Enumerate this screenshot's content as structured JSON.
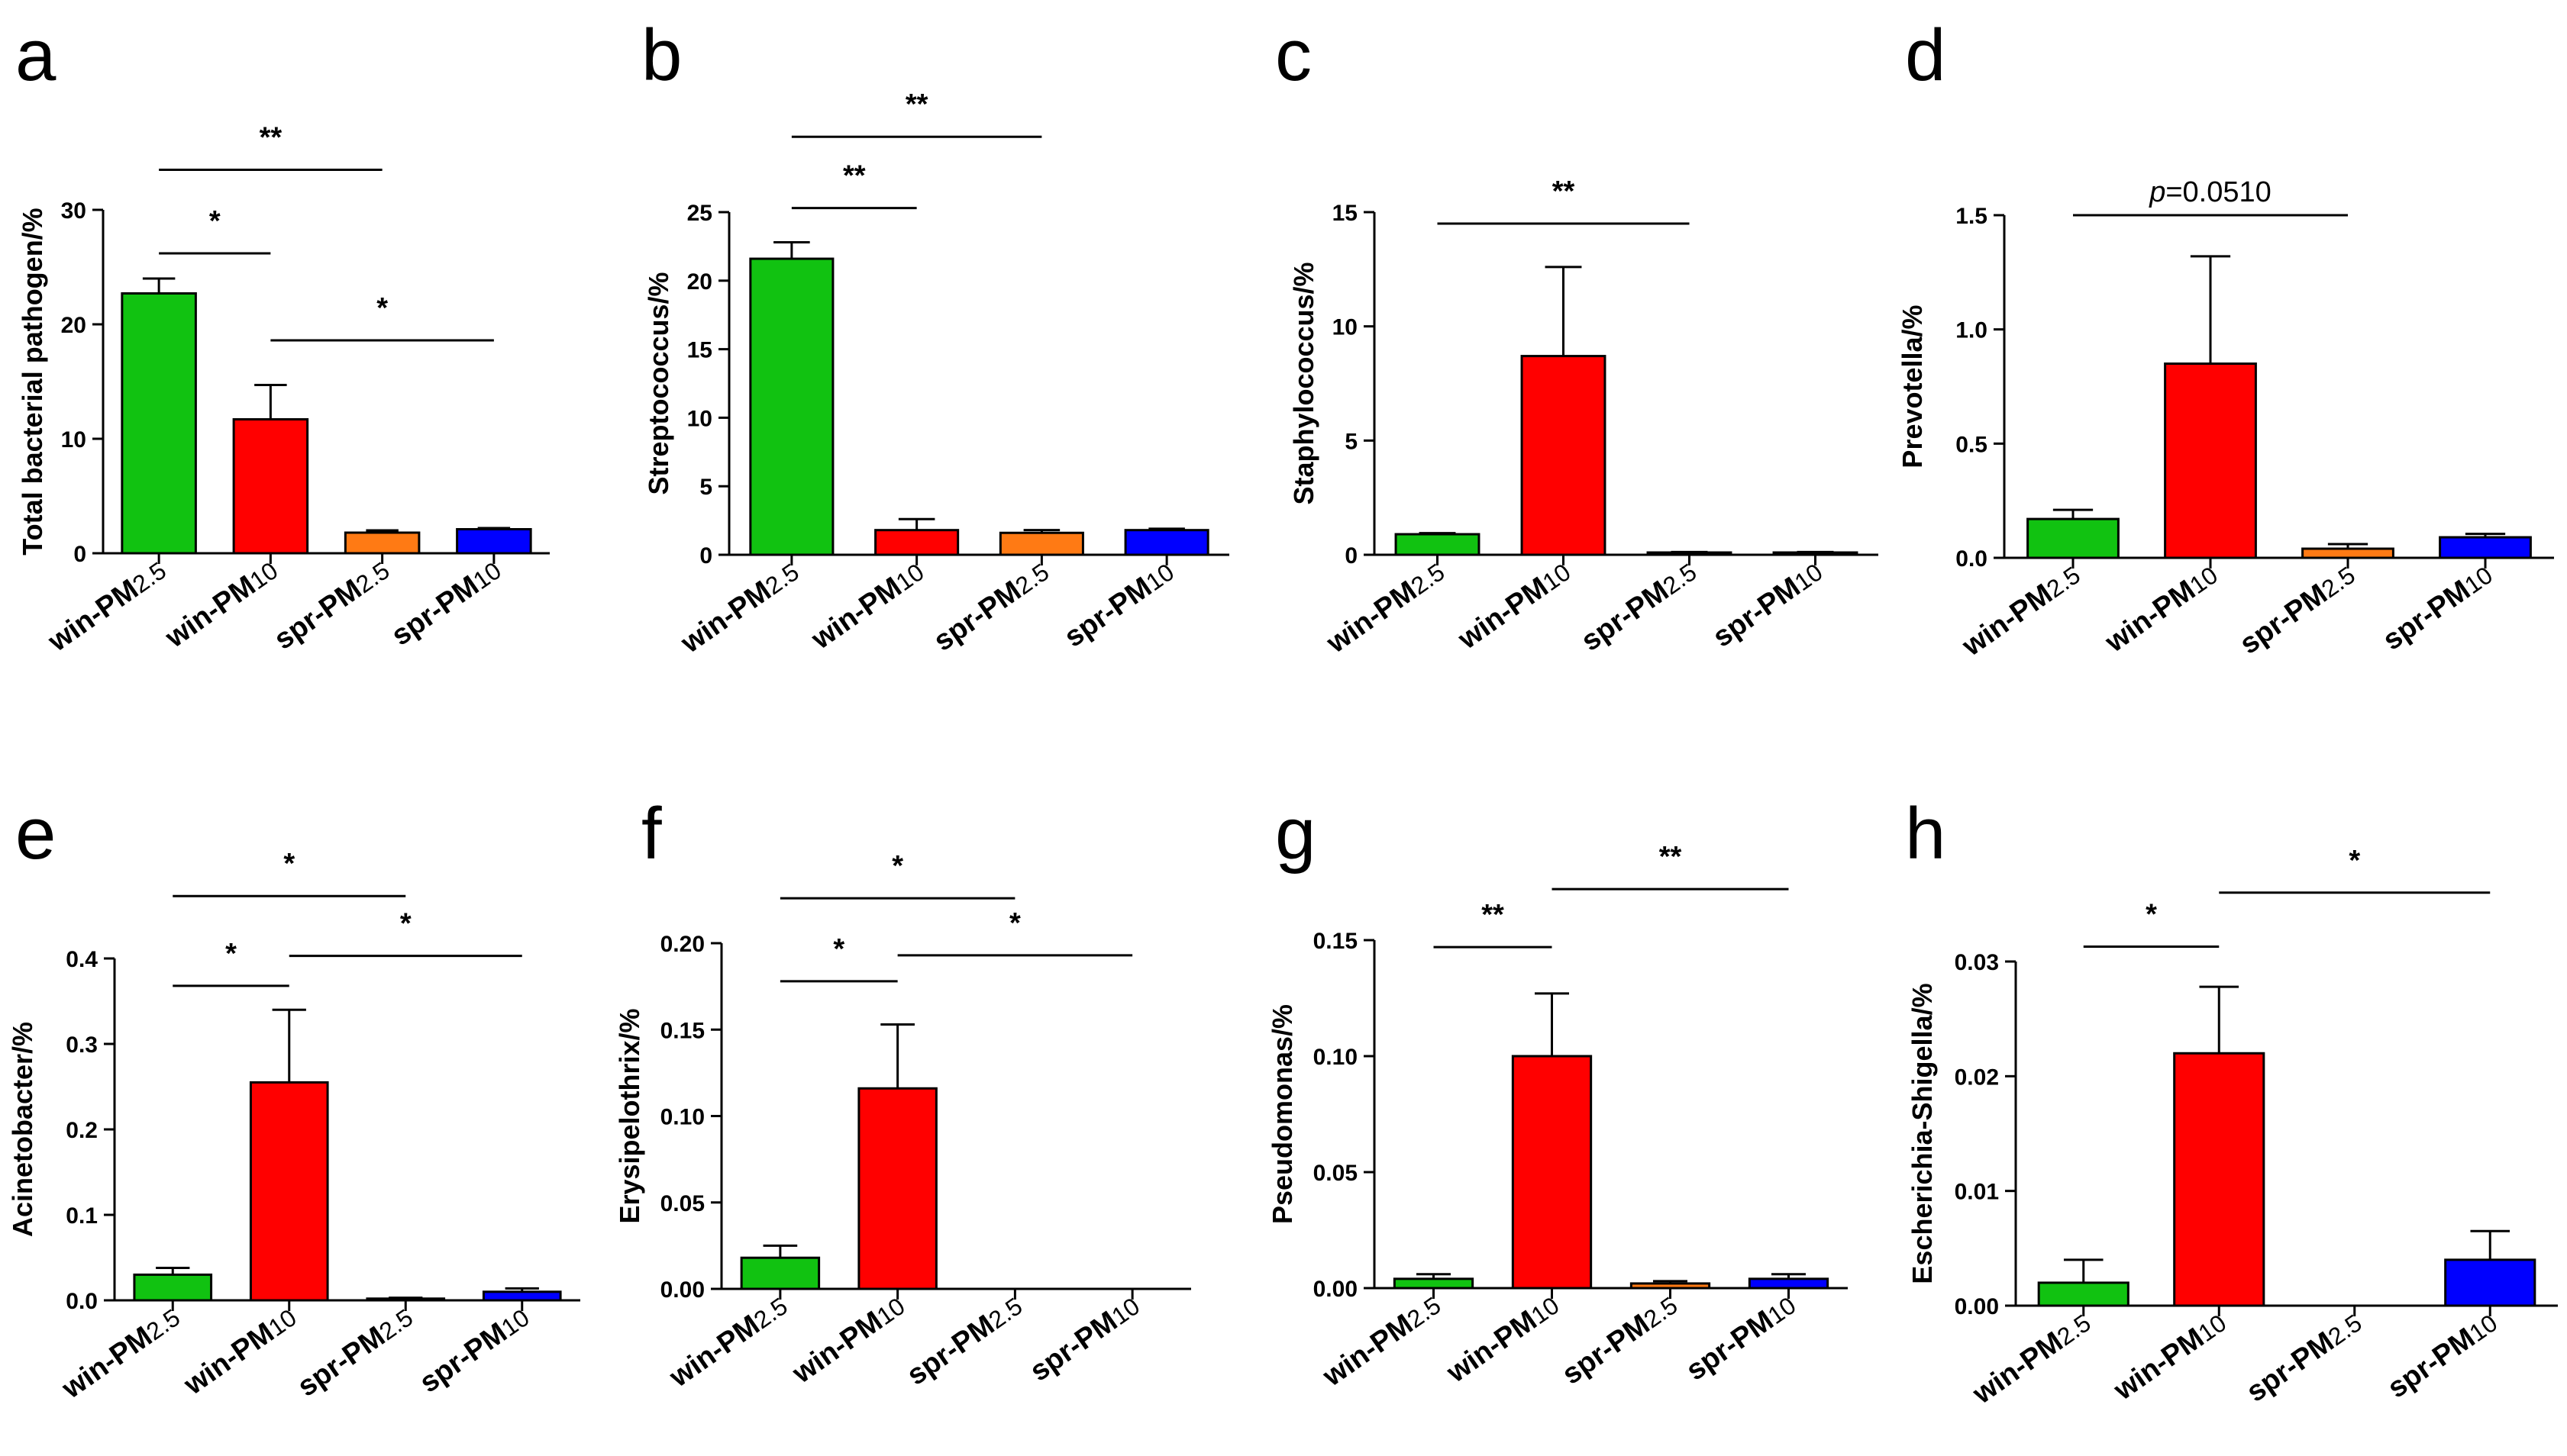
{
  "colors": [
    "#11c211",
    "#ff0000",
    "#ff7a14",
    "#0000ff"
  ],
  "chart_data": [
    {
      "panel": "a",
      "type": "bar",
      "ylabel": "Total bacterial pathogen/%",
      "ylim": [
        0,
        30
      ],
      "ticks": [
        0,
        10,
        20,
        30
      ],
      "tick_labels": [
        "0",
        "10",
        "20",
        "30"
      ],
      "categories": [
        {
          "prefix": "win-PM",
          "sub": "2.5"
        },
        {
          "prefix": "win-PM",
          "sub": "10"
        },
        {
          "prefix": "spr-PM",
          "sub": "2.5"
        },
        {
          "prefix": "spr-PM",
          "sub": "10"
        }
      ],
      "values": [
        22.7,
        11.7,
        1.8,
        2.1
      ],
      "errors": [
        1.3,
        3.0,
        0.2,
        0.1
      ],
      "significance": [
        {
          "from": 0,
          "to": 2,
          "label": "**",
          "y": 33.5
        },
        {
          "from": 0,
          "to": 1,
          "label": "*",
          "y": 26.2
        },
        {
          "from": 1,
          "to": 3,
          "label": "*",
          "y": 18.6
        }
      ]
    },
    {
      "panel": "b",
      "type": "bar",
      "ylabel": "Streptococcus/%",
      "ylim": [
        0,
        25
      ],
      "ticks": [
        0,
        5,
        10,
        15,
        20,
        25
      ],
      "tick_labels": [
        "0",
        "5",
        "10",
        "15",
        "20",
        "25"
      ],
      "categories": [
        {
          "prefix": "win-PM",
          "sub": "2.5"
        },
        {
          "prefix": "win-PM",
          "sub": "10"
        },
        {
          "prefix": "spr-PM",
          "sub": "2.5"
        },
        {
          "prefix": "spr-PM",
          "sub": "10"
        }
      ],
      "values": [
        21.6,
        1.8,
        1.6,
        1.8
      ],
      "errors": [
        1.2,
        0.8,
        0.2,
        0.1
      ],
      "significance": [
        {
          "from": 0,
          "to": 2,
          "label": "**",
          "y": 30.5
        },
        {
          "from": 0,
          "to": 1,
          "label": "**",
          "y": 25.3
        }
      ]
    },
    {
      "panel": "c",
      "type": "bar",
      "ylabel": "Staphylococcus/%",
      "ylim": [
        0,
        15
      ],
      "ticks": [
        0,
        5,
        10,
        15
      ],
      "tick_labels": [
        "0",
        "5",
        "10",
        "15"
      ],
      "categories": [
        {
          "prefix": "win-PM",
          "sub": "2.5"
        },
        {
          "prefix": "win-PM",
          "sub": "10"
        },
        {
          "prefix": "spr-PM",
          "sub": "2.5"
        },
        {
          "prefix": "spr-PM",
          "sub": "10"
        }
      ],
      "values": [
        0.9,
        8.7,
        0.1,
        0.1
      ],
      "errors": [
        0.05,
        3.9,
        0.02,
        0.02
      ],
      "significance": [
        {
          "from": 0,
          "to": 2,
          "label": "**",
          "y": 14.5
        }
      ]
    },
    {
      "panel": "d",
      "type": "bar",
      "ylabel": "Prevotella/%",
      "ylim": [
        0,
        1.5
      ],
      "ticks": [
        0,
        0.5,
        1.0,
        1.5
      ],
      "tick_labels": [
        "0.0",
        "0.5",
        "1.0",
        "1.5"
      ],
      "categories": [
        {
          "prefix": "win-PM",
          "sub": "2.5"
        },
        {
          "prefix": "win-PM",
          "sub": "10"
        },
        {
          "prefix": "spr-PM",
          "sub": "2.5"
        },
        {
          "prefix": "spr-PM",
          "sub": "10"
        }
      ],
      "values": [
        0.17,
        0.85,
        0.04,
        0.09
      ],
      "errors": [
        0.04,
        0.47,
        0.02,
        0.015
      ],
      "significance": [
        {
          "from": 0,
          "to": 2,
          "label": "p=0.0510",
          "y": 1.5
        }
      ]
    },
    {
      "panel": "e",
      "type": "bar",
      "ylabel": "Acinetobacter/%",
      "ylim": [
        0,
        0.4
      ],
      "ticks": [
        0,
        0.1,
        0.2,
        0.3,
        0.4
      ],
      "tick_labels": [
        "0.0",
        "0.1",
        "0.2",
        "0.3",
        "0.4"
      ],
      "categories": [
        {
          "prefix": "win-PM",
          "sub": "2.5"
        },
        {
          "prefix": "win-PM",
          "sub": "10"
        },
        {
          "prefix": "spr-PM",
          "sub": "2.5"
        },
        {
          "prefix": "spr-PM",
          "sub": "10"
        }
      ],
      "values": [
        0.03,
        0.255,
        0.002,
        0.01
      ],
      "errors": [
        0.008,
        0.085,
        0.001,
        0.004
      ],
      "significance": [
        {
          "from": 0,
          "to": 2,
          "label": "*",
          "y": 0.473
        },
        {
          "from": 0,
          "to": 1,
          "label": "*",
          "y": 0.368
        },
        {
          "from": 1,
          "to": 3,
          "label": "*",
          "y": 0.403
        }
      ]
    },
    {
      "panel": "f",
      "type": "bar",
      "ylabel": "Erysipelothrix/%",
      "ylim": [
        0,
        0.2
      ],
      "ticks": [
        0,
        0.05,
        0.1,
        0.15,
        0.2
      ],
      "tick_labels": [
        "0.00",
        "0.05",
        "0.10",
        "0.15",
        "0.20"
      ],
      "categories": [
        {
          "prefix": "win-PM",
          "sub": "2.5"
        },
        {
          "prefix": "win-PM",
          "sub": "10"
        },
        {
          "prefix": "spr-PM",
          "sub": "2.5"
        },
        {
          "prefix": "spr-PM",
          "sub": "10"
        }
      ],
      "values": [
        0.018,
        0.116,
        0,
        0
      ],
      "errors": [
        0.007,
        0.037,
        0,
        0
      ],
      "significance": [
        {
          "from": 0,
          "to": 2,
          "label": "*",
          "y": 0.226
        },
        {
          "from": 0,
          "to": 1,
          "label": "*",
          "y": 0.178
        },
        {
          "from": 1,
          "to": 3,
          "label": "*",
          "y": 0.193
        }
      ]
    },
    {
      "panel": "g",
      "type": "bar",
      "ylabel": "Pseudomonas/%",
      "ylim": [
        0,
        0.15
      ],
      "ticks": [
        0,
        0.05,
        0.1,
        0.15
      ],
      "tick_labels": [
        "0.00",
        "0.05",
        "0.10",
        "0.15"
      ],
      "categories": [
        {
          "prefix": "win-PM",
          "sub": "2.5"
        },
        {
          "prefix": "win-PM",
          "sub": "10"
        },
        {
          "prefix": "spr-PM",
          "sub": "2.5"
        },
        {
          "prefix": "spr-PM",
          "sub": "10"
        }
      ],
      "values": [
        0.004,
        0.1,
        0.002,
        0.004
      ],
      "errors": [
        0.002,
        0.027,
        0.001,
        0.002
      ],
      "significance": [
        {
          "from": 0,
          "to": 1,
          "label": "**",
          "y": 0.147
        },
        {
          "from": 1,
          "to": 3,
          "label": "**",
          "y": 0.172
        }
      ]
    },
    {
      "panel": "h",
      "type": "bar",
      "ylabel": "Escherichia-Shigella/%",
      "ylim": [
        0,
        0.03
      ],
      "ticks": [
        0,
        0.01,
        0.02,
        0.03
      ],
      "tick_labels": [
        "0.00",
        "0.01",
        "0.02",
        "0.03"
      ],
      "categories": [
        {
          "prefix": "win-PM",
          "sub": "2.5"
        },
        {
          "prefix": "win-PM",
          "sub": "10"
        },
        {
          "prefix": "spr-PM",
          "sub": "2.5"
        },
        {
          "prefix": "spr-PM",
          "sub": "10"
        }
      ],
      "values": [
        0.002,
        0.022,
        0,
        0.004
      ],
      "errors": [
        0.002,
        0.0058,
        0,
        0.0025
      ],
      "significance": [
        {
          "from": 0,
          "to": 1,
          "label": "*",
          "y": 0.0313
        },
        {
          "from": 1,
          "to": 3,
          "label": "*",
          "y": 0.036
        }
      ]
    }
  ]
}
